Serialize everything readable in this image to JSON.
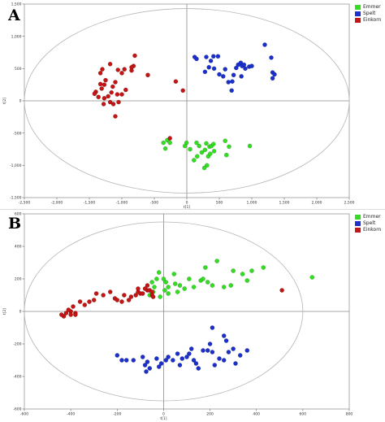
{
  "colors": {
    "Emmer": "#33dd22",
    "Spelt": "#1a2fcc",
    "Einkorn": "#c41414"
  },
  "chart_data": [
    {
      "type": "scatter",
      "panel_label": "A",
      "xlabel": "t[1]",
      "ylabel": "t[2]",
      "xlim": [
        -2500,
        2500
      ],
      "ylim": [
        -1500,
        1500
      ],
      "x_ticks": [
        -2500,
        -2000,
        -1500,
        -1000,
        -500,
        0,
        500,
        1000,
        1500,
        2000,
        2500
      ],
      "x_tick_labels": [
        "-2,500",
        "-2,000",
        "-1,500",
        "-1,000",
        "-500",
        "0",
        "500",
        "1,000",
        "1,500",
        "2,000",
        "2,500"
      ],
      "y_ticks": [
        -1500,
        -1000,
        -500,
        0,
        500,
        1000,
        1500
      ],
      "y_tick_labels": [
        "-1,500",
        "-1,000",
        "-500",
        "0",
        "500",
        "1,000",
        "1,500"
      ],
      "ellipse": {
        "rx": 2500,
        "ry": 1430
      },
      "legend": [
        "Emmer",
        "Spelt",
        "Einkorn"
      ],
      "legend_position": "top-right",
      "series": [
        {
          "name": "Emmer",
          "points": [
            [
              -300,
              -610
            ],
            [
              -260,
              -650
            ],
            [
              -360,
              -650
            ],
            [
              -330,
              -740
            ],
            [
              -5,
              -650
            ],
            [
              50,
              -750
            ],
            [
              150,
              -650
            ],
            [
              190,
              -700
            ],
            [
              230,
              -800
            ],
            [
              160,
              -860
            ],
            [
              110,
              -920
            ],
            [
              280,
              -760
            ],
            [
              300,
              -660
            ],
            [
              350,
              -710
            ],
            [
              380,
              -700
            ],
            [
              410,
              -670
            ],
            [
              420,
              -780
            ],
            [
              330,
              -860
            ],
            [
              360,
              -820
            ],
            [
              310,
              -1000
            ],
            [
              270,
              -1040
            ],
            [
              590,
              -620
            ],
            [
              610,
              -840
            ],
            [
              650,
              -710
            ],
            [
              970,
              -700
            ],
            [
              -30,
              -700
            ]
          ]
        },
        {
          "name": "Spelt",
          "points": [
            [
              120,
              680
            ],
            [
              150,
              650
            ],
            [
              300,
              680
            ],
            [
              370,
              620
            ],
            [
              410,
              690
            ],
            [
              480,
              690
            ],
            [
              280,
              450
            ],
            [
              340,
              520
            ],
            [
              420,
              500
            ],
            [
              500,
              410
            ],
            [
              560,
              380
            ],
            [
              590,
              490
            ],
            [
              640,
              290
            ],
            [
              700,
              300
            ],
            [
              720,
              400
            ],
            [
              760,
              510
            ],
            [
              790,
              560
            ],
            [
              830,
              590
            ],
            [
              850,
              540
            ],
            [
              880,
              560
            ],
            [
              900,
              500
            ],
            [
              840,
              380
            ],
            [
              960,
              530
            ],
            [
              1000,
              540
            ],
            [
              1200,
              870
            ],
            [
              1300,
              670
            ],
            [
              1320,
              440
            ],
            [
              1350,
              410
            ],
            [
              1320,
              350
            ],
            [
              690,
              160
            ]
          ]
        },
        {
          "name": "Einkorn",
          "points": [
            [
              -800,
              700
            ],
            [
              -820,
              540
            ],
            [
              -850,
              520
            ],
            [
              -850,
              470
            ],
            [
              -1000,
              430
            ],
            [
              -1060,
              480
            ],
            [
              -960,
              490
            ],
            [
              -1100,
              290
            ],
            [
              -1140,
              220
            ],
            [
              -1180,
              570
            ],
            [
              -1300,
              490
            ],
            [
              -1330,
              430
            ],
            [
              -1250,
              320
            ],
            [
              -1330,
              260
            ],
            [
              -1270,
              250
            ],
            [
              -1310,
              190
            ],
            [
              -1400,
              140
            ],
            [
              -1420,
              110
            ],
            [
              -1360,
              60
            ],
            [
              -1270,
              40
            ],
            [
              -1210,
              70
            ],
            [
              -1160,
              130
            ],
            [
              -1070,
              100
            ],
            [
              -1000,
              100
            ],
            [
              -940,
              170
            ],
            [
              -1050,
              -20
            ],
            [
              -1130,
              -50
            ],
            [
              -1180,
              -20
            ],
            [
              -1280,
              -50
            ],
            [
              -1100,
              -240
            ],
            [
              -600,
              400
            ],
            [
              -170,
              300
            ],
            [
              -60,
              160
            ],
            [
              -260,
              -580
            ]
          ]
        }
      ]
    },
    {
      "type": "scatter",
      "panel_label": "B",
      "xlabel": "t[1]",
      "ylabel": "t[2]",
      "xlim": [
        -600,
        800
      ],
      "ylim": [
        -600,
        600
      ],
      "x_ticks": [
        -600,
        -400,
        -200,
        0,
        200,
        400,
        600,
        800
      ],
      "x_tick_labels": [
        "-600",
        "-400",
        "-200",
        "0",
        "200",
        "400",
        "600",
        "800"
      ],
      "y_ticks": [
        -600,
        -400,
        -200,
        0,
        200,
        400,
        600
      ],
      "y_tick_labels": [
        "-600",
        "-400",
        "-200",
        "0",
        "200",
        "400",
        "600"
      ],
      "ellipse": {
        "rx": 600,
        "ry": 550
      },
      "legend": [
        "Emmer",
        "Spelt",
        "Einkorn"
      ],
      "legend_position": "top-right",
      "series": [
        {
          "name": "Emmer",
          "points": [
            [
              -50,
              180
            ],
            [
              -40,
              150
            ],
            [
              -45,
              120
            ],
            [
              -60,
              100
            ],
            [
              -20,
              240
            ],
            [
              -30,
              200
            ],
            [
              0,
              200
            ],
            [
              10,
              180
            ],
            [
              20,
              150
            ],
            [
              5,
              130
            ],
            [
              -15,
              90
            ],
            [
              20,
              110
            ],
            [
              45,
              230
            ],
            [
              50,
              170
            ],
            [
              60,
              120
            ],
            [
              70,
              160
            ],
            [
              90,
              140
            ],
            [
              110,
              200
            ],
            [
              130,
              150
            ],
            [
              160,
              190
            ],
            [
              170,
              200
            ],
            [
              180,
              270
            ],
            [
              190,
              180
            ],
            [
              210,
              160
            ],
            [
              230,
              310
            ],
            [
              260,
              150
            ],
            [
              290,
              160
            ],
            [
              300,
              250
            ],
            [
              340,
              230
            ],
            [
              380,
              250
            ],
            [
              360,
              190
            ],
            [
              430,
              270
            ],
            [
              640,
              210
            ]
          ]
        },
        {
          "name": "Spelt",
          "points": [
            [
              -200,
              -270
            ],
            [
              -180,
              -300
            ],
            [
              -160,
              -300
            ],
            [
              -130,
              -300
            ],
            [
              -90,
              -280
            ],
            [
              -80,
              -330
            ],
            [
              -75,
              -370
            ],
            [
              -70,
              -310
            ],
            [
              -30,
              -290
            ],
            [
              -20,
              -340
            ],
            [
              -10,
              -320
            ],
            [
              10,
              -300
            ],
            [
              20,
              -280
            ],
            [
              40,
              -300
            ],
            [
              60,
              -260
            ],
            [
              70,
              -330
            ],
            [
              80,
              -290
            ],
            [
              100,
              -280
            ],
            [
              110,
              -260
            ],
            [
              120,
              -230
            ],
            [
              130,
              -300
            ],
            [
              140,
              -320
            ],
            [
              150,
              -350
            ],
            [
              170,
              -240
            ],
            [
              190,
              -240
            ],
            [
              200,
              -200
            ],
            [
              210,
              -250
            ],
            [
              220,
              -330
            ],
            [
              240,
              -290
            ],
            [
              260,
              -300
            ],
            [
              270,
              -180
            ],
            [
              280,
              -250
            ],
            [
              300,
              -230
            ],
            [
              310,
              -320
            ],
            [
              330,
              -270
            ],
            [
              360,
              -240
            ],
            [
              210,
              -100
            ],
            [
              260,
              -150
            ],
            [
              -60,
              -350
            ]
          ]
        },
        {
          "name": "Einkorn",
          "points": [
            [
              -420,
              -10
            ],
            [
              -400,
              0
            ],
            [
              -380,
              -10
            ],
            [
              -410,
              10
            ],
            [
              -390,
              30
            ],
            [
              -430,
              -30
            ],
            [
              -440,
              -20
            ],
            [
              -400,
              -20
            ],
            [
              -380,
              -20
            ],
            [
              -360,
              60
            ],
            [
              -340,
              40
            ],
            [
              -320,
              60
            ],
            [
              -300,
              70
            ],
            [
              -290,
              110
            ],
            [
              -260,
              100
            ],
            [
              -230,
              120
            ],
            [
              -210,
              80
            ],
            [
              -200,
              70
            ],
            [
              -180,
              60
            ],
            [
              -170,
              100
            ],
            [
              -150,
              70
            ],
            [
              -140,
              90
            ],
            [
              -120,
              100
            ],
            [
              -110,
              120
            ],
            [
              -100,
              110
            ],
            [
              -90,
              110
            ],
            [
              -70,
              130
            ],
            [
              -60,
              130
            ],
            [
              -50,
              120
            ],
            [
              -110,
              140
            ],
            [
              -70,
              160
            ],
            [
              -80,
              140
            ],
            [
              -50,
              100
            ],
            [
              510,
              130
            ],
            [
              -45,
              90
            ]
          ]
        }
      ]
    }
  ]
}
